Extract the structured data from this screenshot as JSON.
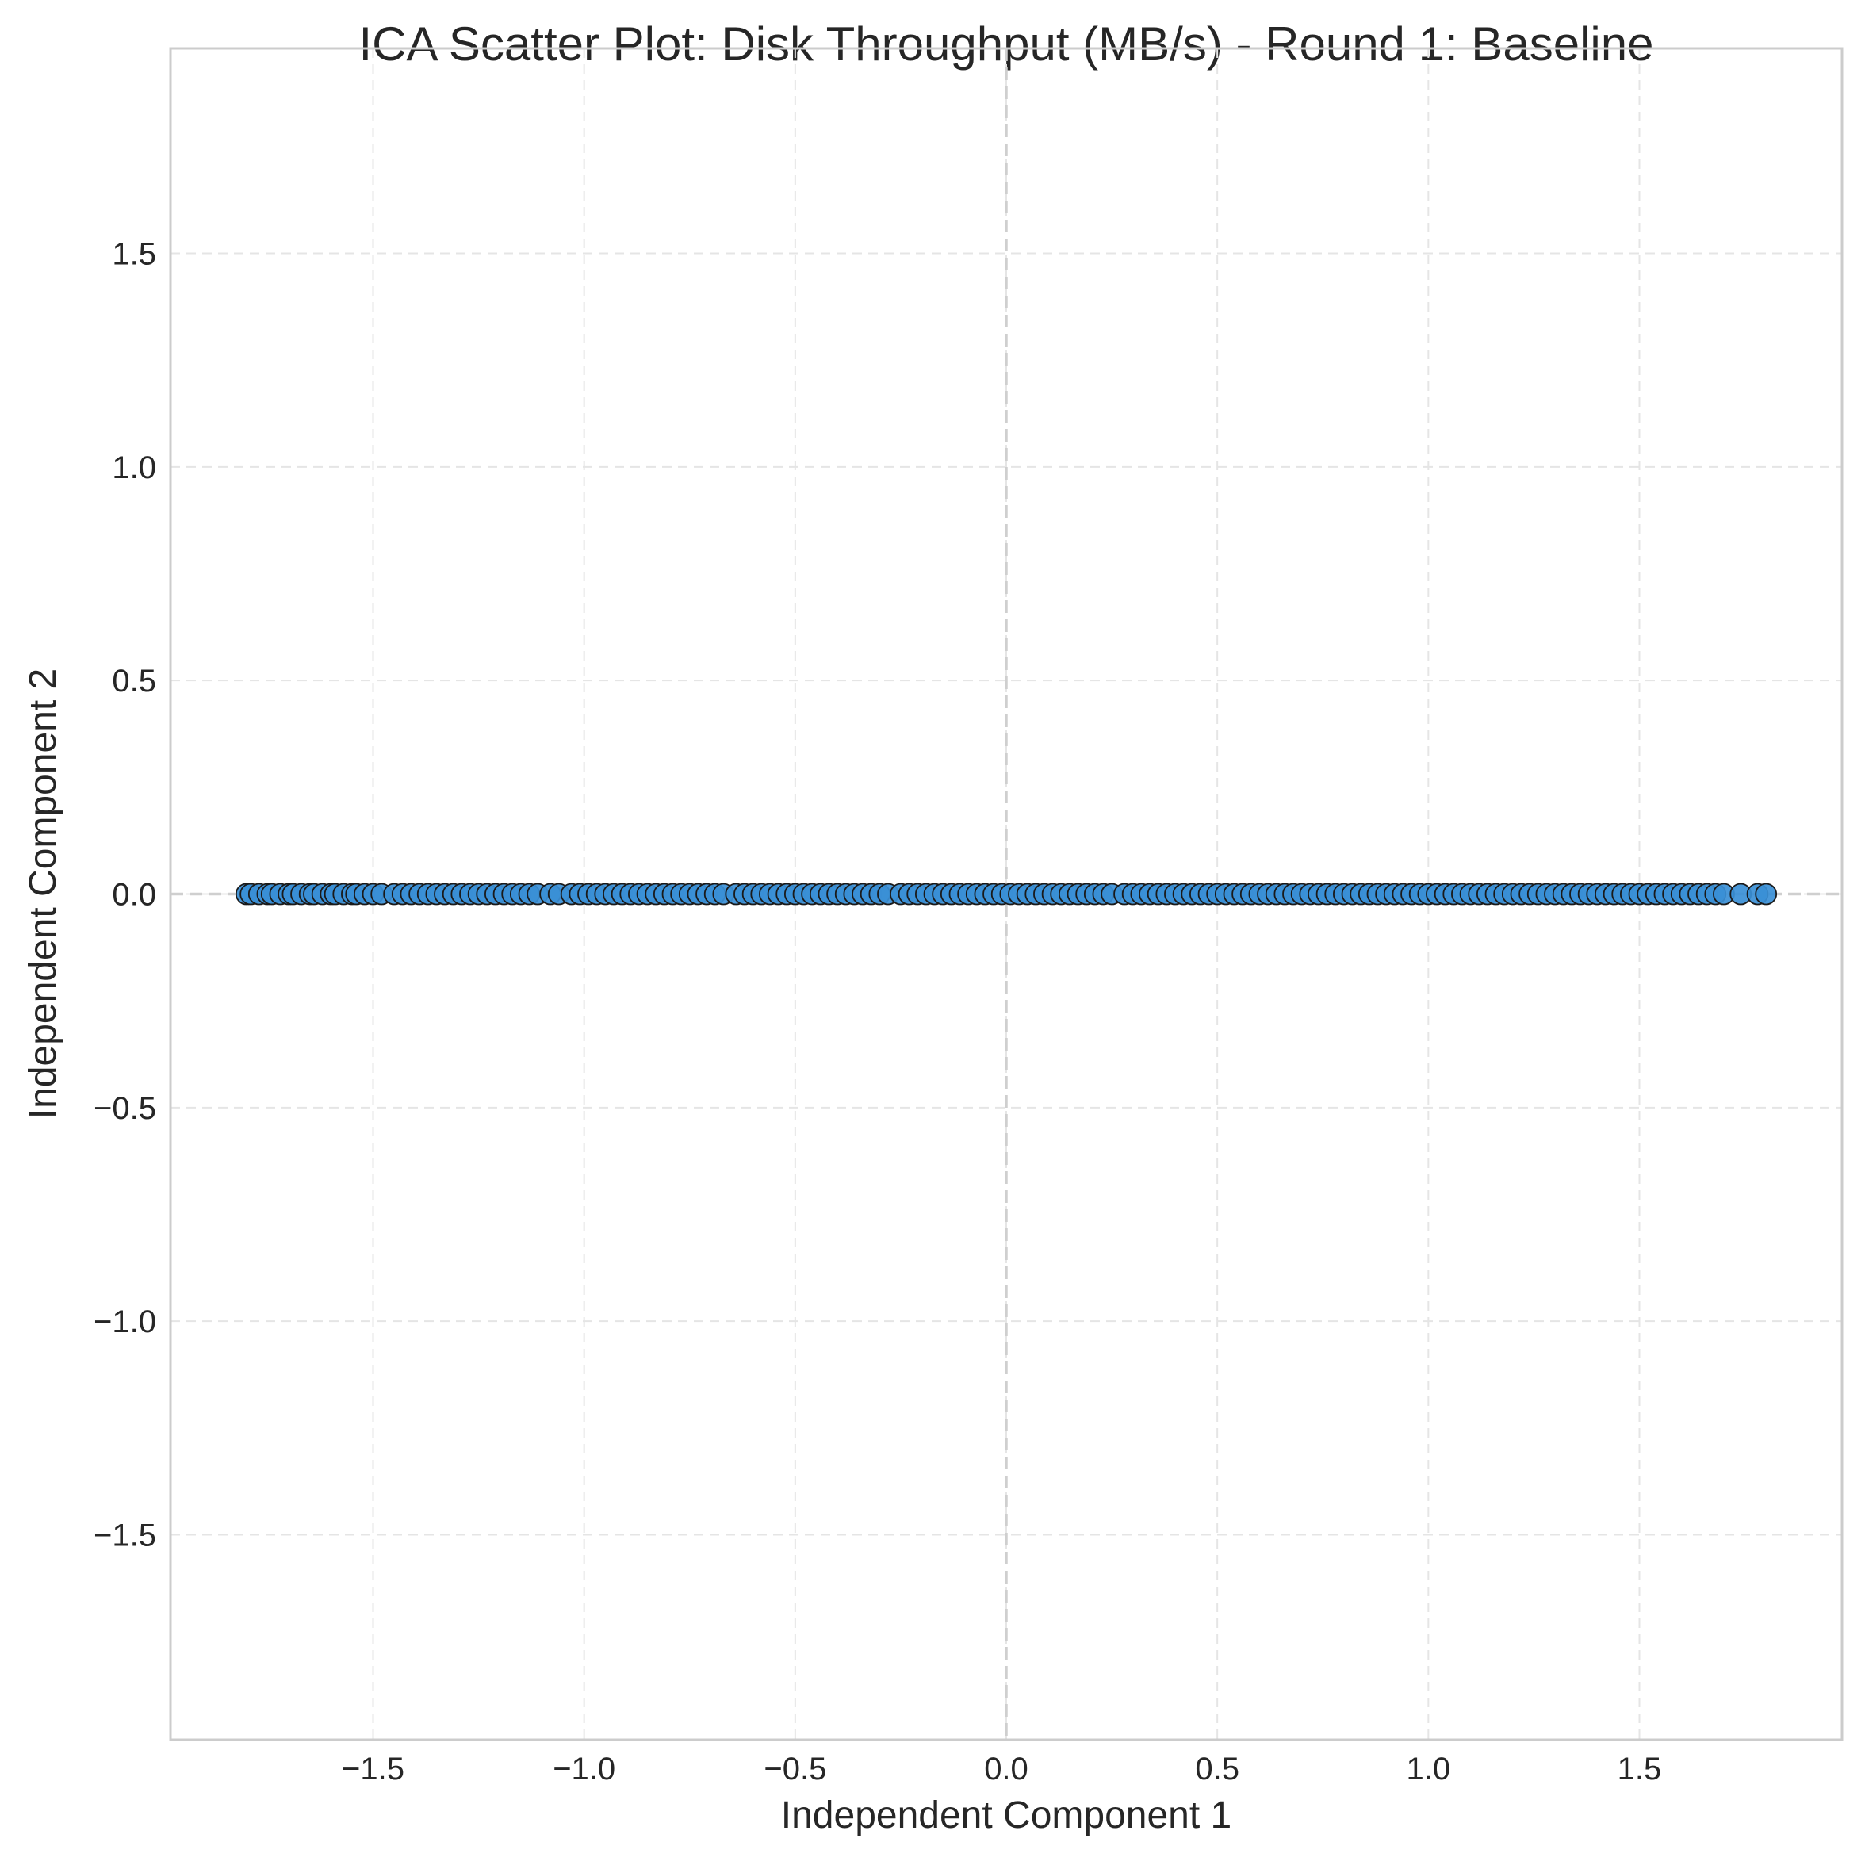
{
  "chart_data": {
    "type": "scatter",
    "title": "ICA Scatter Plot: Disk Throughput (MB/s) - Round 1: Baseline",
    "xlabel": "Independent Component 1",
    "ylabel": "Independent Component 2",
    "xlim": [
      -1.98,
      1.98
    ],
    "ylim": [
      -1.98,
      1.98
    ],
    "xticks": [
      -1.5,
      -1.0,
      -0.5,
      0.0,
      0.5,
      1.0,
      1.5
    ],
    "yticks": [
      -1.5,
      -1.0,
      -0.5,
      0.0,
      0.5,
      1.0,
      1.5
    ],
    "xtick_labels": [
      "−1.5",
      "−1.0",
      "−0.5",
      "0.0",
      "0.5",
      "1.0",
      "1.5"
    ],
    "ytick_labels": [
      "−1.5",
      "−1.0",
      "−0.5",
      "0.0",
      "0.5",
      "1.0",
      "1.5"
    ],
    "grid": true,
    "reference_lines": {
      "x": 0,
      "y": 0
    },
    "colors": {
      "point_fill": "#3a8fd6",
      "point_edge": "#1a1a1a",
      "grid": "#e5e5e5",
      "reference": "#cfcfcf",
      "frame": "#cccccc"
    },
    "series": [
      {
        "x": [
          -1.8,
          -1.79,
          -1.77,
          -1.75,
          -1.74,
          -1.72,
          -1.7,
          -1.69,
          -1.67,
          -1.65,
          -1.64,
          -1.62,
          -1.6,
          -1.59,
          -1.57,
          -1.55,
          -1.54,
          -1.52,
          -1.5,
          -1.48,
          -1.45,
          -1.43,
          -1.41,
          -1.39,
          -1.37,
          -1.35,
          -1.33,
          -1.31,
          -1.29,
          -1.27,
          -1.25,
          -1.23,
          -1.21,
          -1.19,
          -1.17,
          -1.15,
          -1.13,
          -1.11,
          -1.08,
          -1.06,
          -1.03,
          -1.01,
          -0.99,
          -0.97,
          -0.95,
          -0.93,
          -0.91,
          -0.89,
          -0.87,
          -0.85,
          -0.83,
          -0.81,
          -0.79,
          -0.77,
          -0.75,
          -0.73,
          -0.71,
          -0.69,
          -0.67,
          -0.64,
          -0.62,
          -0.6,
          -0.58,
          -0.56,
          -0.54,
          -0.52,
          -0.5,
          -0.48,
          -0.46,
          -0.44,
          -0.42,
          -0.4,
          -0.38,
          -0.36,
          -0.34,
          -0.32,
          -0.3,
          -0.28,
          -0.25,
          -0.23,
          -0.21,
          -0.19,
          -0.17,
          -0.15,
          -0.13,
          -0.11,
          -0.09,
          -0.07,
          -0.05,
          -0.03,
          -0.01,
          0.01,
          0.03,
          0.05,
          0.07,
          0.09,
          0.11,
          0.13,
          0.15,
          0.17,
          0.19,
          0.21,
          0.23,
          0.25,
          0.28,
          0.3,
          0.32,
          0.34,
          0.36,
          0.38,
          0.4,
          0.42,
          0.44,
          0.46,
          0.48,
          0.5,
          0.52,
          0.54,
          0.56,
          0.58,
          0.6,
          0.62,
          0.64,
          0.66,
          0.68,
          0.7,
          0.72,
          0.74,
          0.76,
          0.78,
          0.8,
          0.82,
          0.84,
          0.86,
          0.88,
          0.9,
          0.92,
          0.94,
          0.96,
          0.98,
          1.0,
          1.02,
          1.04,
          1.06,
          1.08,
          1.1,
          1.12,
          1.14,
          1.16,
          1.18,
          1.2,
          1.22,
          1.24,
          1.26,
          1.28,
          1.3,
          1.32,
          1.34,
          1.36,
          1.38,
          1.4,
          1.42,
          1.44,
          1.46,
          1.48,
          1.5,
          1.52,
          1.54,
          1.56,
          1.58,
          1.6,
          1.62,
          1.64,
          1.66,
          1.68,
          1.7,
          1.74,
          1.78,
          1.8
        ],
        "y_constant": 0.0
      }
    ]
  }
}
